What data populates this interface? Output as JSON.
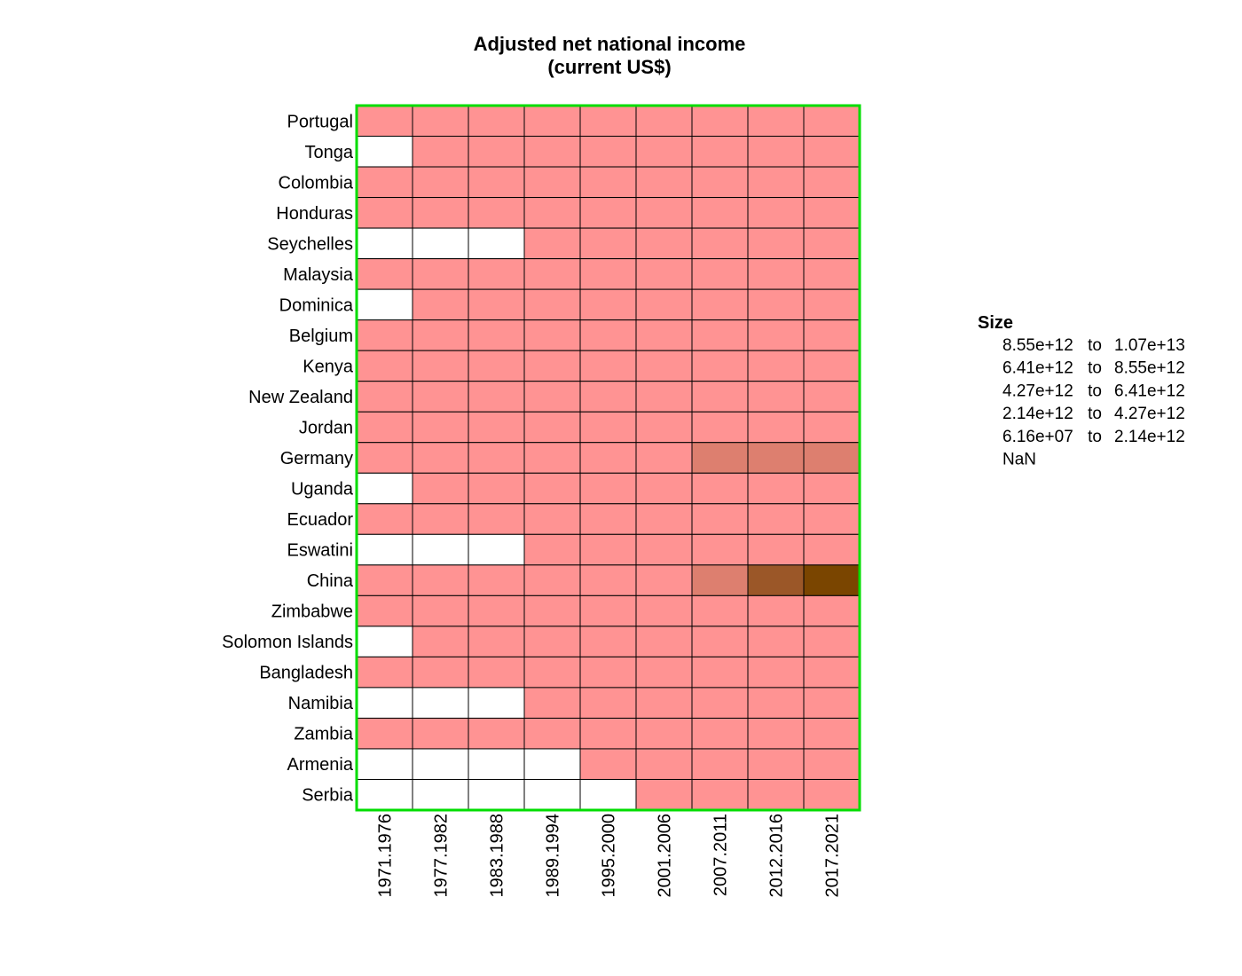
{
  "chart_data": {
    "type": "heatmap",
    "title_lines": [
      "Adjusted net national income",
      "(current US$)"
    ],
    "xlabel": "",
    "ylabel": "",
    "x": [
      "1971.1976",
      "1977.1982",
      "1983.1988",
      "1989.1994",
      "1995.2000",
      "2001.2006",
      "2007.2011",
      "2012.2016",
      "2017.2021"
    ],
    "y": [
      "Portugal",
      "Tonga",
      "Colombia",
      "Honduras",
      "Seychelles",
      "Malaysia",
      "Dominica",
      "Belgium",
      "Kenya",
      "New Zealand",
      "Jordan",
      "Germany",
      "Uganda",
      "Ecuador",
      "Eswatini",
      "China",
      "Zimbabwe",
      "Solomon Islands",
      "Bangladesh",
      "Namibia",
      "Zambia",
      "Armenia",
      "Serbia"
    ],
    "bins": [
      "6.16e+07 to 2.14e+12",
      "2.14e+12 to 4.27e+12",
      "4.27e+12 to 6.41e+12",
      "6.41e+12 to 8.55e+12",
      "8.55e+12 to 1.07e+13",
      "NaN"
    ],
    "bin_colors": [
      "#ff9393",
      "#dd7f6f",
      "#9b5728",
      "#8a4d16",
      "#7a4500",
      "#ffffff"
    ],
    "cells": [
      [
        0,
        0,
        0,
        0,
        0,
        0,
        0,
        0,
        0
      ],
      [
        5,
        0,
        0,
        0,
        0,
        0,
        0,
        0,
        0
      ],
      [
        0,
        0,
        0,
        0,
        0,
        0,
        0,
        0,
        0
      ],
      [
        0,
        0,
        0,
        0,
        0,
        0,
        0,
        0,
        0
      ],
      [
        5,
        5,
        5,
        0,
        0,
        0,
        0,
        0,
        0
      ],
      [
        0,
        0,
        0,
        0,
        0,
        0,
        0,
        0,
        0
      ],
      [
        5,
        0,
        0,
        0,
        0,
        0,
        0,
        0,
        0
      ],
      [
        0,
        0,
        0,
        0,
        0,
        0,
        0,
        0,
        0
      ],
      [
        0,
        0,
        0,
        0,
        0,
        0,
        0,
        0,
        0
      ],
      [
        0,
        0,
        0,
        0,
        0,
        0,
        0,
        0,
        0
      ],
      [
        0,
        0,
        0,
        0,
        0,
        0,
        0,
        0,
        0
      ],
      [
        0,
        0,
        0,
        0,
        0,
        0,
        1,
        1,
        1
      ],
      [
        5,
        0,
        0,
        0,
        0,
        0,
        0,
        0,
        0
      ],
      [
        0,
        0,
        0,
        0,
        0,
        0,
        0,
        0,
        0
      ],
      [
        5,
        5,
        5,
        0,
        0,
        0,
        0,
        0,
        0
      ],
      [
        0,
        0,
        0,
        0,
        0,
        0,
        1,
        2,
        4
      ],
      [
        0,
        0,
        0,
        0,
        0,
        0,
        0,
        0,
        0
      ],
      [
        5,
        0,
        0,
        0,
        0,
        0,
        0,
        0,
        0
      ],
      [
        0,
        0,
        0,
        0,
        0,
        0,
        0,
        0,
        0
      ],
      [
        5,
        5,
        5,
        0,
        0,
        0,
        0,
        0,
        0
      ],
      [
        0,
        0,
        0,
        0,
        0,
        0,
        0,
        0,
        0
      ],
      [
        5,
        5,
        5,
        5,
        0,
        0,
        0,
        0,
        0
      ],
      [
        5,
        5,
        5,
        5,
        5,
        0,
        0,
        0,
        0
      ]
    ],
    "legend": {
      "title": "Size",
      "connector": "to",
      "entries": [
        {
          "from": "8.55e+12",
          "to": "1.07e+13"
        },
        {
          "from": "6.41e+12",
          "to": "8.55e+12"
        },
        {
          "from": "4.27e+12",
          "to": "6.41e+12"
        },
        {
          "from": "2.14e+12",
          "to": "4.27e+12"
        },
        {
          "from": "6.16e+07",
          "to": "2.14e+12"
        },
        {
          "from": "NaN",
          "to": ""
        }
      ],
      "placement": "right"
    },
    "panel_border_color": "#00dd00",
    "grid": true
  }
}
